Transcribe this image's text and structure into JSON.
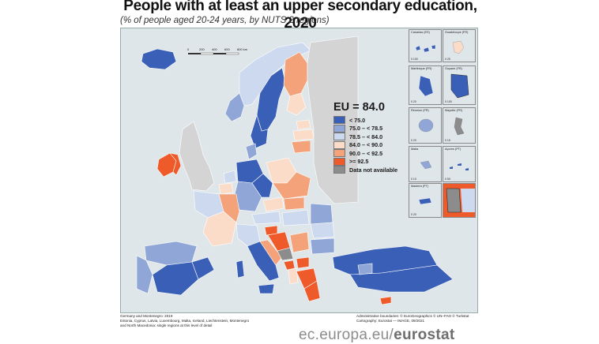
{
  "title": "People with at least an upper secondary education, 2020",
  "subtitle": "(% of people aged 20-24 years, by NUTS 2 regions)",
  "scale": {
    "labels": [
      "0",
      "200",
      "400",
      "600",
      "800 km"
    ]
  },
  "legend": {
    "eu_value": "EU = 84.0",
    "classes": [
      {
        "label": "< 75.0",
        "color": "#3a5fb6"
      },
      {
        "label": "75.0 – < 78.5",
        "color": "#8fa6d6"
      },
      {
        "label": "78.5 – < 84.0",
        "color": "#cdd9ee"
      },
      {
        "label": "84.0 – < 90.0",
        "color": "#fbdcc8"
      },
      {
        "label": "90.0 – < 92.5",
        "color": "#f4a27a"
      },
      {
        "label": ">= 92.5",
        "color": "#ee5a2a"
      },
      {
        "label": "Data not available",
        "color": "#8c8c8c"
      }
    ]
  },
  "insets": [
    {
      "name": "Canarias (ES)",
      "scale": "0  100"
    },
    {
      "name": "Guadeloupe (FR)",
      "scale": "0  25"
    },
    {
      "name": "Martinique (FR)",
      "scale": "0  20"
    },
    {
      "name": "Guyane (FR)",
      "scale": "0  100"
    },
    {
      "name": "Réunion (FR)",
      "scale": "0  20"
    },
    {
      "name": "Mayotte (FR)",
      "scale": "0  15"
    },
    {
      "name": "Malta",
      "scale": "0  10"
    },
    {
      "name": "Açores (PT)",
      "scale": "0  50"
    },
    {
      "name": "Madeira (PT)",
      "scale": "0  20"
    },
    {
      "name": "Liechtenstein",
      "scale": "0  5"
    }
  ],
  "notes": {
    "line1": "Germany and Montenegro: 2019",
    "line2": "Estonia, Cyprus, Latvia, Luxembourg, Malta, Iceland, Liechtenstein, Montenegro",
    "line3": "and North Macedonia: single regions at this level of detail"
  },
  "credits": {
    "line1": "Administrative boundaries: © EuroGeographics © UN–FAO © Turkstat",
    "line2": "Cartography: Eurostat — IMAGE, 09/2021"
  },
  "footer": {
    "prefix": "ec.europa.eu/",
    "brand": "eurostat"
  }
}
